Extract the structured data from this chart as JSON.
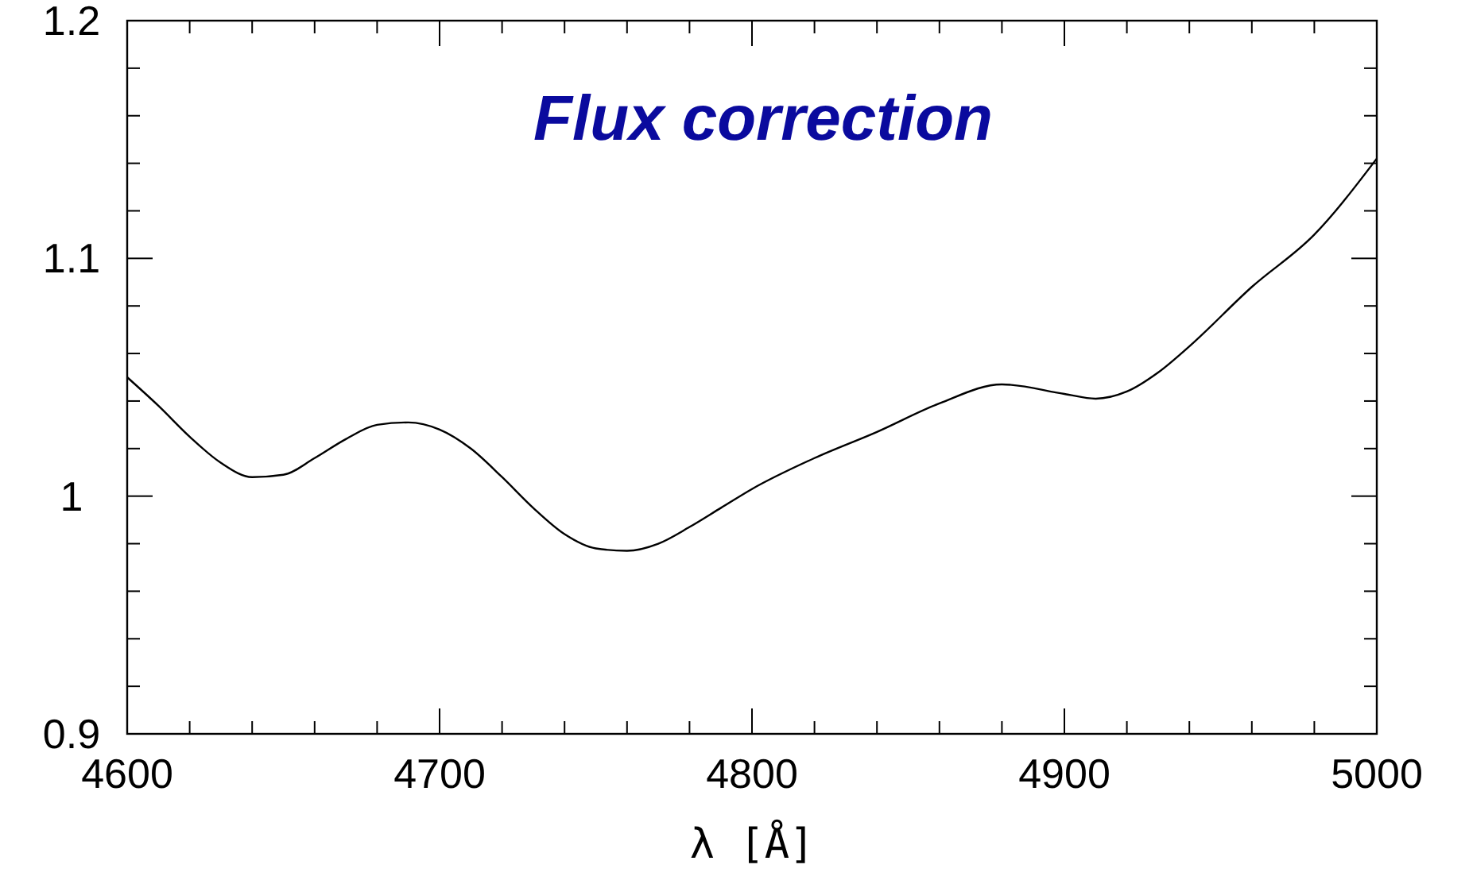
{
  "chart_data": {
    "type": "line",
    "title": "Flux correction",
    "xlabel": "λ [Å]",
    "x": [
      4600,
      4610,
      4620,
      4630,
      4640,
      4650,
      4660,
      4670,
      4680,
      4690,
      4700,
      4710,
      4720,
      4730,
      4740,
      4750,
      4760,
      4770,
      4780,
      4790,
      4800,
      4820,
      4840,
      4860,
      4880,
      4900,
      4910,
      4920,
      4930,
      4940,
      4960,
      4980,
      5000
    ],
    "series": [
      {
        "color": "#000000",
        "values": [
          1.05,
          1.038,
          1.025,
          1.014,
          1.008,
          1.009,
          1.016,
          1.024,
          1.03,
          1.031,
          1.028,
          1.02,
          1.008,
          0.995,
          0.984,
          0.978,
          0.977,
          0.98,
          0.987,
          0.995,
          1.003,
          1.016,
          1.027,
          1.039,
          1.047,
          1.043,
          1.041,
          1.044,
          1.052,
          1.063,
          1.088,
          1.11,
          1.142
        ]
      }
    ],
    "xlim": [
      4600,
      5000
    ],
    "xticks": [
      4600,
      {
        "value": 4620,
        "label": null
      },
      {
        "value": 4640,
        "label": null
      },
      {
        "value": 4660,
        "label": null
      },
      {
        "value": 4680,
        "label": null
      },
      4700,
      {
        "value": 4720,
        "label": null
      },
      {
        "value": 4740,
        "label": null
      },
      {
        "value": 4760,
        "label": null
      },
      {
        "value": 4780,
        "label": null
      },
      4800,
      {
        "value": 4820,
        "label": null
      },
      {
        "value": 4840,
        "label": null
      },
      {
        "value": 4860,
        "label": null
      },
      {
        "value": 4880,
        "label": null
      },
      4900,
      {
        "value": 4920,
        "label": null
      },
      {
        "value": 4940,
        "label": null
      },
      {
        "value": 4960,
        "label": null
      },
      {
        "value": 4980,
        "label": null
      },
      5000
    ],
    "ylim": [
      0.9,
      1.2
    ],
    "yticks": [
      0.9,
      {
        "value": 0.92,
        "label": null
      },
      {
        "value": 0.94,
        "label": null
      },
      {
        "value": 0.96,
        "label": null
      },
      {
        "value": 0.98,
        "label": null
      },
      1,
      {
        "value": 1.02,
        "label": null
      },
      {
        "value": 1.04,
        "label": null
      },
      {
        "value": 1.06,
        "label": null
      },
      {
        "value": 1.08,
        "label": null
      },
      1.1,
      {
        "value": 1.12,
        "label": null
      },
      {
        "value": 1.14,
        "label": null
      },
      {
        "value": 1.16,
        "label": null
      },
      {
        "value": 1.18,
        "label": null
      },
      1.2
    ],
    "marker": "none",
    "line_style": "solid"
  }
}
